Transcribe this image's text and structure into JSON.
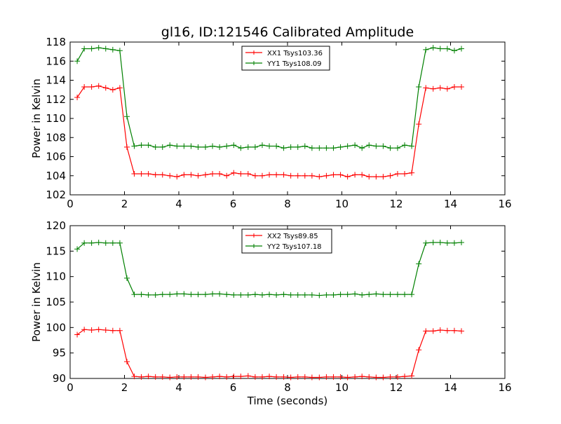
{
  "title": "gl16, ID:121546 Calibrated Amplitude",
  "xlabel": "Time (seconds)",
  "chart_data": [
    {
      "type": "line",
      "title": "gl16, ID:121546 Calibrated Amplitude",
      "xlabel": "",
      "ylabel": "Power in Kelvin",
      "xlim": [
        0,
        16
      ],
      "ylim": [
        102,
        118
      ],
      "xticks": [
        0,
        2,
        4,
        6,
        8,
        10,
        12,
        14,
        16
      ],
      "yticks": [
        102,
        104,
        106,
        108,
        110,
        112,
        114,
        116,
        118
      ],
      "grid": false,
      "legend_position": "top-center",
      "x": [
        0.26,
        0.52,
        0.79,
        1.05,
        1.31,
        1.57,
        1.83,
        2.09,
        2.36,
        2.62,
        2.88,
        3.14,
        3.4,
        3.67,
        3.93,
        4.19,
        4.45,
        4.71,
        4.98,
        5.24,
        5.5,
        5.76,
        6.02,
        6.28,
        6.55,
        6.81,
        7.07,
        7.33,
        7.59,
        7.86,
        8.12,
        8.38,
        8.64,
        8.9,
        9.17,
        9.43,
        9.69,
        9.95,
        10.21,
        10.48,
        10.74,
        11.0,
        11.26,
        11.52,
        11.78,
        12.05,
        12.31,
        12.57,
        12.83,
        13.09,
        13.36,
        13.62,
        13.88,
        14.14,
        14.4
      ],
      "series": [
        {
          "name": "XX1 Tsys103.36",
          "color": "#ff0000",
          "values": [
            112.2,
            113.3,
            113.3,
            113.4,
            113.2,
            113.0,
            113.2,
            107.0,
            104.2,
            104.2,
            104.2,
            104.1,
            104.1,
            104.0,
            103.9,
            104.1,
            104.1,
            104.0,
            104.1,
            104.2,
            104.2,
            104.0,
            104.3,
            104.2,
            104.2,
            104.0,
            104.0,
            104.1,
            104.1,
            104.1,
            104.0,
            104.0,
            104.0,
            104.0,
            103.9,
            104.0,
            104.1,
            104.1,
            103.9,
            104.1,
            104.1,
            103.9,
            103.9,
            103.9,
            104.0,
            104.2,
            104.2,
            104.3,
            109.4,
            113.2,
            113.1,
            113.2,
            113.1,
            113.3,
            113.3
          ]
        },
        {
          "name": "YY1 Tsys108.09",
          "color": "#008000",
          "values": [
            116.0,
            117.3,
            117.3,
            117.4,
            117.3,
            117.2,
            117.1,
            110.2,
            107.1,
            107.2,
            107.2,
            107.0,
            107.0,
            107.2,
            107.1,
            107.1,
            107.1,
            107.0,
            107.0,
            107.1,
            107.0,
            107.1,
            107.2,
            106.9,
            107.0,
            107.0,
            107.2,
            107.1,
            107.1,
            106.9,
            107.0,
            107.0,
            107.1,
            106.9,
            106.9,
            106.9,
            106.9,
            107.0,
            107.1,
            107.2,
            106.9,
            107.2,
            107.1,
            107.1,
            106.9,
            106.9,
            107.2,
            107.1,
            113.3,
            117.2,
            117.4,
            117.3,
            117.3,
            117.1,
            117.3
          ]
        }
      ]
    },
    {
      "type": "line",
      "title": "",
      "xlabel": "Time (seconds)",
      "ylabel": "Power in Kelvin",
      "xlim": [
        0,
        16
      ],
      "ylim": [
        90,
        120
      ],
      "xticks": [
        0,
        2,
        4,
        6,
        8,
        10,
        12,
        14,
        16
      ],
      "yticks": [
        90,
        95,
        100,
        105,
        110,
        115,
        120
      ],
      "grid": false,
      "legend_position": "top-center",
      "x": [
        0.26,
        0.52,
        0.79,
        1.05,
        1.31,
        1.57,
        1.83,
        2.09,
        2.36,
        2.62,
        2.88,
        3.14,
        3.4,
        3.67,
        3.93,
        4.19,
        4.45,
        4.71,
        4.98,
        5.24,
        5.5,
        5.76,
        6.02,
        6.28,
        6.55,
        6.81,
        7.07,
        7.33,
        7.59,
        7.86,
        8.12,
        8.38,
        8.64,
        8.9,
        9.17,
        9.43,
        9.69,
        9.95,
        10.21,
        10.48,
        10.74,
        11.0,
        11.26,
        11.52,
        11.78,
        12.05,
        12.31,
        12.57,
        12.83,
        13.09,
        13.36,
        13.62,
        13.88,
        14.14,
        14.4
      ],
      "series": [
        {
          "name": "XX2 Tsys89.85",
          "color": "#ff0000",
          "values": [
            98.6,
            99.6,
            99.5,
            99.6,
            99.5,
            99.4,
            99.4,
            93.3,
            90.4,
            90.3,
            90.4,
            90.3,
            90.3,
            90.2,
            90.3,
            90.3,
            90.3,
            90.3,
            90.2,
            90.3,
            90.4,
            90.3,
            90.4,
            90.4,
            90.5,
            90.3,
            90.3,
            90.4,
            90.3,
            90.3,
            90.2,
            90.3,
            90.3,
            90.2,
            90.2,
            90.3,
            90.3,
            90.3,
            90.2,
            90.3,
            90.4,
            90.3,
            90.2,
            90.2,
            90.3,
            90.3,
            90.4,
            90.5,
            95.6,
            99.3,
            99.3,
            99.5,
            99.4,
            99.4,
            99.3
          ]
        },
        {
          "name": "YY2 Tsys107.18",
          "color": "#008000",
          "values": [
            115.4,
            116.6,
            116.6,
            116.7,
            116.6,
            116.6,
            116.6,
            109.7,
            106.5,
            106.5,
            106.4,
            106.4,
            106.5,
            106.5,
            106.6,
            106.6,
            106.5,
            106.5,
            106.5,
            106.6,
            106.6,
            106.5,
            106.4,
            106.4,
            106.4,
            106.5,
            106.4,
            106.5,
            106.4,
            106.5,
            106.4,
            106.4,
            106.4,
            106.4,
            106.3,
            106.4,
            106.4,
            106.5,
            106.5,
            106.6,
            106.4,
            106.5,
            106.6,
            106.5,
            106.5,
            106.5,
            106.5,
            106.5,
            112.5,
            116.6,
            116.7,
            116.7,
            116.6,
            116.6,
            116.7
          ]
        }
      ]
    }
  ]
}
